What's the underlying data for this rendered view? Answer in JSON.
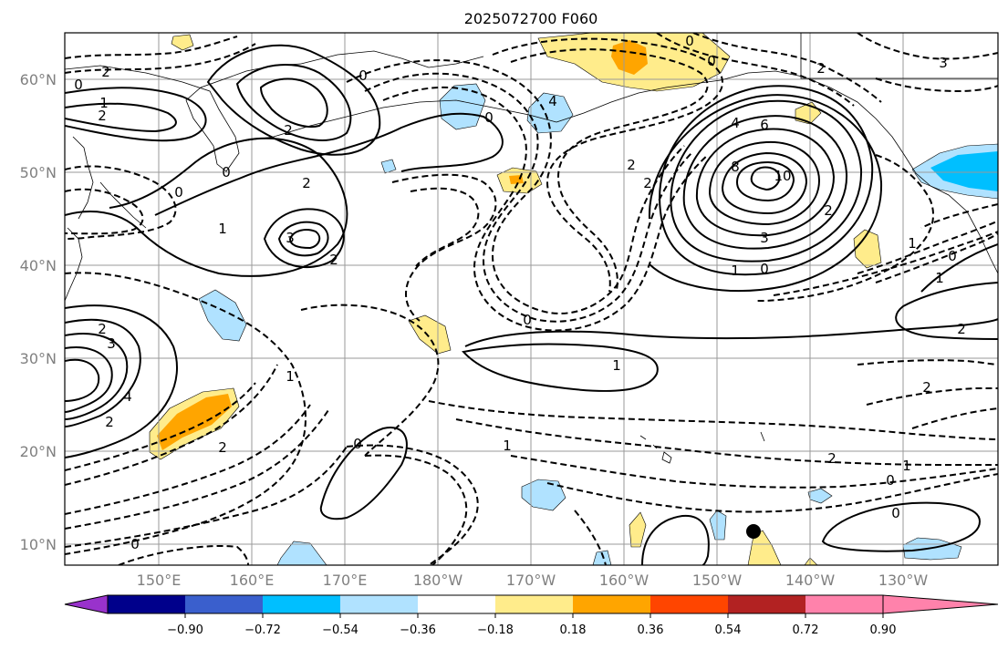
{
  "title": "2025072700 F060",
  "lat_labels": [
    "60°N",
    "50°N",
    "40°N",
    "30°N",
    "20°N",
    "10°N"
  ],
  "lon_labels": [
    "150°E",
    "160°E",
    "170°E",
    "180°W",
    "170°W",
    "160°W",
    "150°W",
    "140°W",
    "130°W"
  ],
  "colorbar": {
    "ticks": [
      "−0.90",
      "−0.72",
      "−0.54",
      "−0.36",
      "−0.18",
      "0.18",
      "0.36",
      "0.54",
      "0.72",
      "0.90"
    ],
    "colors": [
      "#9932CC",
      "#00008B",
      "#3A5FCD",
      "#00BFFF",
      "#B0E2FF",
      "#FFFFFF",
      "#FFEC8B",
      "#FFA500",
      "#FF4500",
      "#B22222",
      "#FF82AB"
    ]
  },
  "contour_labels": {
    "c1": "2",
    "c2": "0",
    "c3": "1",
    "c4": "2",
    "c5": "0",
    "c6": "2",
    "c7": "0",
    "c8": "1",
    "c9": "2",
    "c10": "3",
    "c11": "2",
    "c12": "0",
    "c13": "4",
    "c14": "0",
    "c15": "0",
    "c16": "2",
    "c17": "2",
    "c18": "4",
    "c19": "6",
    "c20": "8",
    "c21": "10",
    "c22": "3",
    "c23": "2",
    "c24": "1",
    "c25": "0",
    "c26": "0",
    "c27": "1",
    "c28": "0",
    "c29": "1",
    "c30": "3",
    "c31": "2",
    "c32": "4",
    "c33": "2",
    "c34": "2",
    "c35": "1",
    "c36": "0",
    "c37": "1",
    "c38": "1",
    "c39": "0",
    "c40": "2",
    "c41": "0",
    "c42": "1",
    "c43": "0",
    "c44": "2",
    "c45": "2",
    "c46": "0",
    "c47": "2",
    "c48": "3"
  }
}
